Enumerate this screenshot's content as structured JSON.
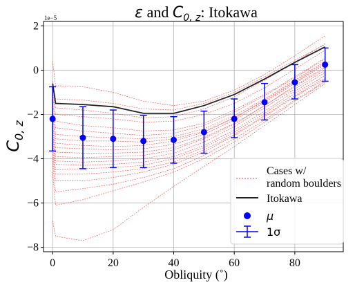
{
  "chart_data": {
    "type": "line",
    "title": "ε and C₀,z: Itokawa",
    "title_parts": {
      "epsilon": "ε",
      "and": " and ",
      "C": "C",
      "sub": "0, z",
      "rest": ": Itokawa"
    },
    "xlabel": "Obliquity (˚)",
    "ylabel": "C",
    "ylabel_sub": "0, z",
    "y_multiplier": "1e−5",
    "xlim": [
      -3,
      96
    ],
    "ylim": [
      -8.2,
      2.2
    ],
    "xticks": [
      0,
      20,
      40,
      60,
      80
    ],
    "yticks": [
      -8,
      -6,
      -4,
      -2,
      0,
      2
    ],
    "grid": true,
    "legend_position": "lower-right",
    "legend": {
      "cases_line1": "Cases w/",
      "cases_line2": "random boulders",
      "itokawa": "Itokawa",
      "mu": "μ",
      "sigma": "1σ"
    },
    "colors": {
      "cases": "#ff3b3b",
      "itokawa": "#222222",
      "mu": "#0000ff",
      "sigma": "#0000ff",
      "grid": "#b0b0b0"
    },
    "x": [
      0,
      1,
      10,
      20,
      30,
      40,
      50,
      60,
      70,
      80,
      90
    ],
    "series": [
      {
        "name": "Itokawa",
        "values": [
          -0.6,
          -1.5,
          -1.55,
          -1.65,
          -1.95,
          -1.95,
          -1.6,
          -1.1,
          -0.4,
          0.35,
          1.05
        ]
      },
      {
        "name": "μ",
        "x": [
          0,
          10,
          20,
          30,
          40,
          50,
          60,
          70,
          80,
          90
        ],
        "values": [
          -2.2,
          -3.05,
          -3.1,
          -3.2,
          -3.15,
          -2.8,
          -2.2,
          -1.45,
          -0.55,
          0.25
        ]
      },
      {
        "name": "1σ",
        "x": [
          0,
          10,
          20,
          30,
          40,
          50,
          60,
          70,
          80,
          90
        ],
        "lower": [
          -3.65,
          -4.45,
          -4.4,
          -4.4,
          -4.2,
          -3.75,
          -3.05,
          -2.25,
          -1.3,
          -0.5
        ],
        "upper": [
          -0.75,
          -1.65,
          -1.8,
          -2.05,
          -2.1,
          -1.85,
          -1.3,
          -0.6,
          0.25,
          1.0
        ]
      }
    ],
    "cases": [
      [
        -0.5,
        -1.3,
        -1.35,
        -1.5,
        -1.75,
        -1.8,
        -1.5,
        -1.0,
        -0.3,
        0.45,
        1.15
      ],
      [
        -1.0,
        -1.7,
        -1.8,
        -1.95,
        -2.15,
        -2.1,
        -1.75,
        -1.2,
        -0.45,
        0.35,
        1.2
      ],
      [
        0.4,
        -0.7,
        -0.75,
        -1.0,
        -1.4,
        -1.6,
        -1.4,
        -0.9,
        -0.2,
        0.65,
        1.55
      ],
      [
        -1.2,
        -2.0,
        -2.1,
        -2.2,
        -2.35,
        -2.3,
        -2.0,
        -1.5,
        -0.8,
        0.05,
        0.9
      ],
      [
        -1.5,
        -2.3,
        -2.5,
        -2.6,
        -2.75,
        -2.7,
        -2.4,
        -1.8,
        -1.1,
        -0.3,
        0.55
      ],
      [
        -1.8,
        -2.6,
        -2.75,
        -2.85,
        -2.95,
        -2.85,
        -2.5,
        -1.9,
        -1.15,
        -0.35,
        0.5
      ],
      [
        -2.0,
        -2.9,
        -3.0,
        -3.05,
        -3.1,
        -3.0,
        -2.65,
        -2.05,
        -1.3,
        -0.45,
        0.4
      ],
      [
        -2.2,
        -3.1,
        -3.2,
        -3.2,
        -3.25,
        -3.1,
        -2.75,
        -2.15,
        -1.4,
        -0.55,
        0.3
      ],
      [
        -2.5,
        -3.3,
        -3.4,
        -3.45,
        -3.4,
        -3.2,
        -2.8,
        -2.15,
        -1.35,
        -0.5,
        0.35
      ],
      [
        -2.7,
        -3.5,
        -3.55,
        -3.6,
        -3.55,
        -3.35,
        -2.9,
        -2.25,
        -1.45,
        -0.6,
        0.25
      ],
      [
        -2.9,
        -3.7,
        -3.75,
        -3.75,
        -3.7,
        -3.5,
        -3.05,
        -2.4,
        -1.6,
        -0.7,
        0.15
      ],
      [
        -3.0,
        -3.9,
        -3.95,
        -3.9,
        -3.85,
        -3.6,
        -3.1,
        -2.45,
        -1.6,
        -0.75,
        0.1
      ],
      [
        -3.2,
        -4.1,
        -4.15,
        -4.1,
        -4.0,
        -3.75,
        -3.25,
        -2.55,
        -1.7,
        -0.85,
        0.0
      ],
      [
        -3.4,
        -4.25,
        -4.3,
        -4.25,
        -4.15,
        -3.9,
        -3.4,
        -2.7,
        -1.85,
        -0.95,
        -0.1
      ],
      [
        -3.6,
        -4.5,
        -4.45,
        -4.4,
        -4.3,
        -4.0,
        -3.5,
        -2.8,
        -1.95,
        -1.05,
        -0.25
      ],
      [
        -3.8,
        -4.7,
        -4.7,
        -4.6,
        -4.45,
        -4.15,
        -3.6,
        -2.9,
        -2.05,
        -1.15,
        -0.35
      ],
      [
        -4.0,
        -5.0,
        -5.0,
        -4.85,
        -4.6,
        -4.25,
        -3.7,
        -2.95,
        -2.1,
        -1.2,
        -0.4
      ],
      [
        -4.2,
        -5.5,
        -5.35,
        -5.15,
        -4.85,
        -4.45,
        -3.85,
        -3.1,
        -2.25,
        -1.35,
        -0.5
      ],
      [
        -4.6,
        -6.1,
        -5.85,
        -5.45,
        -5.05,
        -4.6,
        -4.0,
        -3.25,
        -2.35,
        -1.4,
        -0.55
      ],
      [
        -6.8,
        -7.5,
        -7.7,
        -7.2,
        -6.2,
        -5.25,
        -4.35,
        -3.45,
        -2.5,
        -1.55,
        -0.6
      ]
    ]
  }
}
